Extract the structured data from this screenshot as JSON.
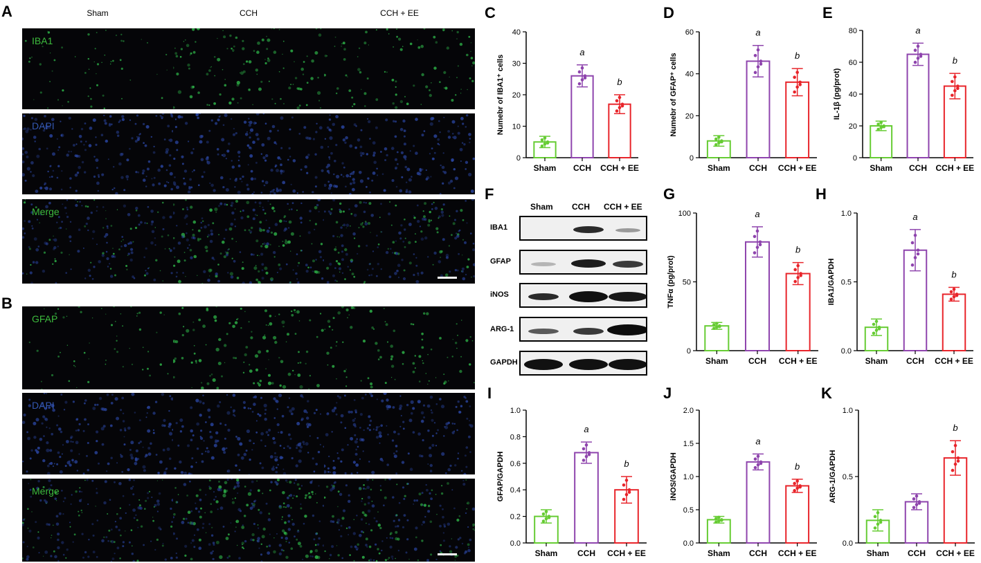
{
  "panels": {
    "A": {
      "letter": "A",
      "columns": [
        "Sham",
        "CCH",
        "CCH + EE"
      ],
      "rows": [
        "IBA1",
        "DAPI",
        "Merge"
      ]
    },
    "B": {
      "letter": "B",
      "rows": [
        "GFAP",
        "DAPI",
        "Merge"
      ]
    },
    "F": {
      "letter": "F",
      "columns": [
        "Sham",
        "CCH",
        "CCH + EE"
      ],
      "rows": [
        "IBA1",
        "GFAP",
        "iNOS",
        "ARG-1",
        "GAPDH"
      ]
    }
  },
  "colors": {
    "sham": "#66cc33",
    "cch": "#8e44ad",
    "cch_ee": "#e8242a",
    "micro_bg": "#050508"
  },
  "chart_data": [
    {
      "id": "C",
      "type": "bar",
      "categories": [
        "Sham",
        "CCH",
        "CCH + EE"
      ],
      "ylabel": "Numebr of IBA1⁺ cells",
      "ylim": [
        0,
        40
      ],
      "yticks": [
        "0",
        "10",
        "20",
        "30",
        "40"
      ],
      "values": [
        5,
        26,
        17
      ],
      "errors": [
        1.8,
        3.5,
        3
      ],
      "annotations": [
        "",
        "a",
        "b"
      ]
    },
    {
      "id": "D",
      "type": "bar",
      "categories": [
        "Sham",
        "CCH",
        "CCH + EE"
      ],
      "ylabel": "Numebr of GFAP⁺ cells",
      "ylim": [
        0,
        60
      ],
      "yticks": [
        "0",
        "20",
        "40",
        "60"
      ],
      "values": [
        8,
        46,
        36
      ],
      "errors": [
        2.5,
        7.5,
        6.5
      ],
      "annotations": [
        "",
        "a",
        "b"
      ]
    },
    {
      "id": "E",
      "type": "bar",
      "categories": [
        "Sham",
        "CCH",
        "CCH + EE"
      ],
      "ylabel": "IL-1β (pg/prot)",
      "ylim": [
        0,
        80
      ],
      "yticks": [
        "0",
        "20",
        "40",
        "60",
        "80"
      ],
      "values": [
        20,
        65,
        45
      ],
      "errors": [
        3,
        7,
        8
      ],
      "annotations": [
        "",
        "a",
        "b"
      ]
    },
    {
      "id": "G",
      "type": "bar",
      "categories": [
        "Sham",
        "CCH",
        "CCH + EE"
      ],
      "ylabel": "TNFα (pg/prot)",
      "ylim": [
        0,
        100
      ],
      "yticks": [
        "0",
        "50",
        "100"
      ],
      "values": [
        18,
        79,
        56
      ],
      "errors": [
        2.5,
        11,
        8
      ],
      "annotations": [
        "",
        "a",
        "b"
      ]
    },
    {
      "id": "H",
      "type": "bar",
      "categories": [
        "Sham",
        "CCH",
        "CCH + EE"
      ],
      "ylabel": "IBA1/GAPDH",
      "ylim": [
        0,
        1
      ],
      "yticks": [
        "0.0",
        "0.5",
        "1.0"
      ],
      "values": [
        0.17,
        0.73,
        0.41
      ],
      "errors": [
        0.06,
        0.15,
        0.05
      ],
      "annotations": [
        "",
        "a",
        "b"
      ]
    },
    {
      "id": "I",
      "type": "bar",
      "categories": [
        "Sham",
        "CCH",
        "CCH + EE"
      ],
      "ylabel": "GFAP/GAPDH",
      "ylim": [
        0,
        1
      ],
      "yticks": [
        "0.0",
        "0.2",
        "0.4",
        "0.6",
        "0.8",
        "1.0"
      ],
      "values": [
        0.2,
        0.68,
        0.4
      ],
      "errors": [
        0.05,
        0.08,
        0.1
      ],
      "annotations": [
        "",
        "a",
        "b"
      ]
    },
    {
      "id": "J",
      "type": "bar",
      "categories": [
        "Sham",
        "CCH",
        "CCH + EE"
      ],
      "ylabel": "iNOS/GAPDH",
      "ylim": [
        0,
        2
      ],
      "yticks": [
        "0.0",
        "0.5",
        "1.0",
        "1.5",
        "2.0"
      ],
      "values": [
        0.35,
        1.22,
        0.86
      ],
      "errors": [
        0.05,
        0.12,
        0.1
      ],
      "annotations": [
        "",
        "a",
        "b"
      ]
    },
    {
      "id": "K",
      "type": "bar",
      "categories": [
        "Sham",
        "CCH",
        "CCH + EE"
      ],
      "ylabel": "ARG-1/GAPDH",
      "ylim": [
        0,
        1
      ],
      "yticks": [
        "0.0",
        "0.5",
        "1.0"
      ],
      "values": [
        0.17,
        0.31,
        0.64
      ],
      "errors": [
        0.08,
        0.06,
        0.13
      ],
      "annotations": [
        "",
        "",
        "b"
      ]
    }
  ]
}
